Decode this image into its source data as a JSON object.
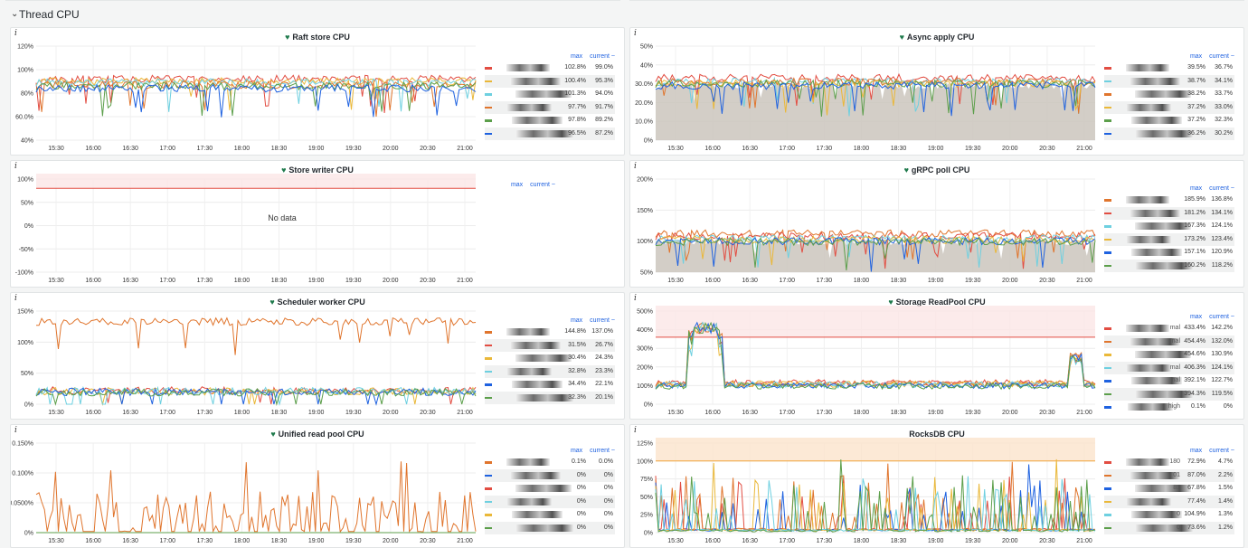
{
  "row": {
    "title": "Thread CPU"
  },
  "legend_header": {
    "max": "max",
    "current": "current ~"
  },
  "no_data": "No data",
  "time_ticks": [
    "15:30",
    "16:00",
    "16:30",
    "17:00",
    "17:30",
    "18:00",
    "18:30",
    "19:00",
    "19:30",
    "20:00",
    "20:30",
    "21:00"
  ],
  "colors": [
    "#e0752d",
    "#1f62e0",
    "#6ed0e0",
    "#eab839",
    "#5c9f4b",
    "#e24d42",
    "#2b2b2b"
  ],
  "panels": [
    {
      "id": "raft-store",
      "title": "Raft store CPU",
      "heart": true,
      "chart_data": {
        "type": "line",
        "x_ticks": [
          "15:30",
          "16:00",
          "16:30",
          "17:00",
          "17:30",
          "18:00",
          "18:30",
          "19:00",
          "19:30",
          "20:00",
          "20:30",
          "21:00"
        ],
        "y_ticks": [
          "40%",
          "60.0%",
          "80%",
          "100%",
          "120%"
        ],
        "ylim": [
          40,
          120
        ],
        "fill": false,
        "series": [
          {
            "color": "#e24d42",
            "max": "102.8%",
            "current": "99.0%",
            "base": 92
          },
          {
            "color": "#eab839",
            "max": "100.4%",
            "current": "95.3%",
            "base": 90
          },
          {
            "color": "#6ed0e0",
            "max": "101.3%",
            "current": "94.0%",
            "base": 89
          },
          {
            "color": "#e0752d",
            "max": "97.7%",
            "current": "91.7%",
            "base": 87
          },
          {
            "color": "#5c9f4b",
            "max": "97.8%",
            "current": "89.2%",
            "base": 86
          },
          {
            "color": "#1f62e0",
            "max": "96.5%",
            "current": "87.2%",
            "base": 84
          }
        ]
      }
    },
    {
      "id": "async-apply",
      "title": "Async apply CPU",
      "heart": true,
      "chart_data": {
        "type": "area",
        "x_ticks": [
          "15:30",
          "16:00",
          "16:30",
          "17:00",
          "17:30",
          "18:00",
          "18:30",
          "19:00",
          "19:30",
          "20:00",
          "20:30",
          "21:00"
        ],
        "y_ticks": [
          "0%",
          "10.0%",
          "20.0%",
          "30.0%",
          "40%",
          "50%"
        ],
        "ylim": [
          0,
          50
        ],
        "fill": true,
        "series": [
          {
            "color": "#e24d42",
            "max": "39.5%",
            "current": "36.7%",
            "base": 33
          },
          {
            "color": "#6ed0e0",
            "max": "38.7%",
            "current": "34.1%",
            "base": 31
          },
          {
            "color": "#e0752d",
            "max": "38.2%",
            "current": "33.7%",
            "base": 31
          },
          {
            "color": "#eab839",
            "max": "37.2%",
            "current": "33.0%",
            "base": 30
          },
          {
            "color": "#5c9f4b",
            "max": "37.2%",
            "current": "32.3%",
            "base": 30
          },
          {
            "color": "#1f62e0",
            "max": "36.2%",
            "current": "30.2%",
            "base": 29
          }
        ]
      }
    },
    {
      "id": "store-writer",
      "title": "Store writer CPU",
      "heart": true,
      "chart_data": {
        "type": "line",
        "x_ticks": [
          "15:30",
          "16:00",
          "16:30",
          "17:00",
          "17:30",
          "18:00",
          "18:30",
          "19:00",
          "19:30",
          "20:00",
          "20:30",
          "21:00"
        ],
        "y_ticks": [
          "-100%",
          "-50%",
          "0%",
          "50%",
          "100%"
        ],
        "ylim": [
          -100,
          100
        ],
        "fill": false,
        "threshold": 80,
        "threshold_zone": true,
        "series": []
      }
    },
    {
      "id": "grpc-poll",
      "title": "gRPC poll CPU",
      "heart": true,
      "chart_data": {
        "type": "area",
        "x_ticks": [
          "15:30",
          "16:00",
          "16:30",
          "17:00",
          "17:30",
          "18:00",
          "18:30",
          "19:00",
          "19:30",
          "20:00",
          "20:30",
          "21:00"
        ],
        "y_ticks": [
          "50%",
          "100%",
          "150%",
          "200%"
        ],
        "ylim": [
          50,
          200
        ],
        "fill": true,
        "series": [
          {
            "color": "#e0752d",
            "max": "185.9%",
            "current": "136.8%",
            "base": 112
          },
          {
            "color": "#e24d42",
            "max": "181.2%",
            "current": "134.1%",
            "base": 108
          },
          {
            "color": "#6ed0e0",
            "max": "167.3%",
            "current": "124.1%",
            "base": 104
          },
          {
            "color": "#eab839",
            "max": "173.2%",
            "current": "123.4%",
            "base": 102
          },
          {
            "color": "#1f62e0",
            "max": "157.1%",
            "current": "120.9%",
            "base": 100
          },
          {
            "color": "#5c9f4b",
            "max": "160.2%",
            "current": "118.2%",
            "base": 99
          }
        ]
      }
    },
    {
      "id": "scheduler-worker",
      "title": "Scheduler worker CPU",
      "heart": true,
      "chart_data": {
        "type": "line",
        "x_ticks": [
          "15:30",
          "16:00",
          "16:30",
          "17:00",
          "17:30",
          "18:00",
          "18:30",
          "19:00",
          "19:30",
          "20:00",
          "20:30",
          "21:00"
        ],
        "y_ticks": [
          "0%",
          "50%",
          "100%",
          "150%"
        ],
        "ylim": [
          0,
          150
        ],
        "fill": false,
        "series": [
          {
            "color": "#e0752d",
            "max": "144.8%",
            "current": "137.0%",
            "base": 133
          },
          {
            "color": "#e24d42",
            "max": "31.5%",
            "current": "26.7%",
            "base": 22
          },
          {
            "color": "#eab839",
            "max": "30.4%",
            "current": "24.3%",
            "base": 21
          },
          {
            "color": "#6ed0e0",
            "max": "32.8%",
            "current": "23.3%",
            "base": 21
          },
          {
            "color": "#1f62e0",
            "max": "34.4%",
            "current": "22.1%",
            "base": 20
          },
          {
            "color": "#5c9f4b",
            "max": "32.3%",
            "current": "20.1%",
            "base": 19
          }
        ]
      }
    },
    {
      "id": "storage-readpool",
      "title": "Storage ReadPool CPU",
      "heart": true,
      "chart_data": {
        "type": "line",
        "x_ticks": [
          "15:30",
          "16:00",
          "16:30",
          "17:00",
          "17:30",
          "18:00",
          "18:30",
          "19:00",
          "19:30",
          "20:00",
          "20:30",
          "21:00"
        ],
        "y_ticks": [
          "0%",
          "100%",
          "200%",
          "300%",
          "400%",
          "500%"
        ],
        "ylim": [
          0,
          500
        ],
        "fill": false,
        "threshold": 360,
        "threshold_zone": true,
        "series": [
          {
            "color": "#e24d42",
            "name": "mal",
            "max": "433.4%",
            "current": "142.2%",
            "base": 115
          },
          {
            "color": "#e0752d",
            "name": "nal",
            "max": "454.4%",
            "current": "132.0%",
            "base": 110
          },
          {
            "color": "#eab839",
            "name": "",
            "max": "454.6%",
            "current": "130.9%",
            "base": 108
          },
          {
            "color": "#6ed0e0",
            "name": "mal",
            "max": "406.3%",
            "current": "124.1%",
            "base": 104
          },
          {
            "color": "#1f62e0",
            "name": "nal",
            "max": "392.1%",
            "current": "122.7%",
            "base": 100
          },
          {
            "color": "#5c9f4b",
            "name": "",
            "max": "394.3%",
            "current": "119.5%",
            "base": 98
          },
          {
            "color": "#1f62e0",
            "name": "high",
            "max": "0.1%",
            "current": "0%",
            "base": 0
          }
        ]
      }
    },
    {
      "id": "unified-read-pool",
      "title": "Unified read pool CPU",
      "heart": true,
      "chart_data": {
        "type": "line",
        "x_ticks": [
          "15:30",
          "16:00",
          "16:30",
          "17:00",
          "17:30",
          "18:00",
          "18:30",
          "19:00",
          "19:30",
          "20:00",
          "20:30",
          "21:00"
        ],
        "y_ticks": [
          "0%",
          "0.0500%",
          "0.100%",
          "0.150%"
        ],
        "ylim": [
          0,
          0.15
        ],
        "fill": false,
        "series": [
          {
            "color": "#e0752d",
            "max": "0.1%",
            "current": "0.0%",
            "base": 0
          },
          {
            "color": "#1f62e0",
            "max": "0%",
            "current": "0%",
            "base": 0
          },
          {
            "color": "#e24d42",
            "max": "0%",
            "current": "0%",
            "base": 0
          },
          {
            "color": "#6ed0e0",
            "max": "0%",
            "current": "0%",
            "base": 0
          },
          {
            "color": "#eab839",
            "max": "0%",
            "current": "0%",
            "base": 0
          },
          {
            "color": "#5c9f4b",
            "max": "0%",
            "current": "0%",
            "base": 0
          }
        ]
      }
    },
    {
      "id": "rocksdb",
      "title": "RocksDB CPU",
      "heart": false,
      "chart_data": {
        "type": "line",
        "x_ticks": [
          "15:30",
          "16:00",
          "16:30",
          "17:00",
          "17:30",
          "18:00",
          "18:30",
          "19:00",
          "19:30",
          "20:00",
          "20:30",
          "21:00"
        ],
        "y_ticks": [
          "0%",
          "25%",
          "50%",
          "75%",
          "100%",
          "125%"
        ],
        "ylim": [
          0,
          125
        ],
        "fill": false,
        "threshold": 100,
        "threshold_zone": true,
        "threshold_color": "#f2a33a",
        "series": [
          {
            "color": "#e24d42",
            "name": "180",
            "max": "72.9%",
            "current": "4.7%",
            "base": 3
          },
          {
            "color": "#e0752d",
            "name": "01",
            "max": "87.0%",
            "current": "2.2%",
            "base": 3
          },
          {
            "color": "#1f62e0",
            "name": "81",
            "max": "67.8%",
            "current": "1.5%",
            "base": 2
          },
          {
            "color": "#eab839",
            "name": "",
            "max": "77.4%",
            "current": "1.4%",
            "base": 2
          },
          {
            "color": "#6ed0e0",
            "name": "0",
            "max": "104.9%",
            "current": "1.3%",
            "base": 2
          },
          {
            "color": "#5c9f4b",
            "name": "0",
            "max": "73.6%",
            "current": "1.2%",
            "base": 1
          }
        ]
      }
    }
  ]
}
